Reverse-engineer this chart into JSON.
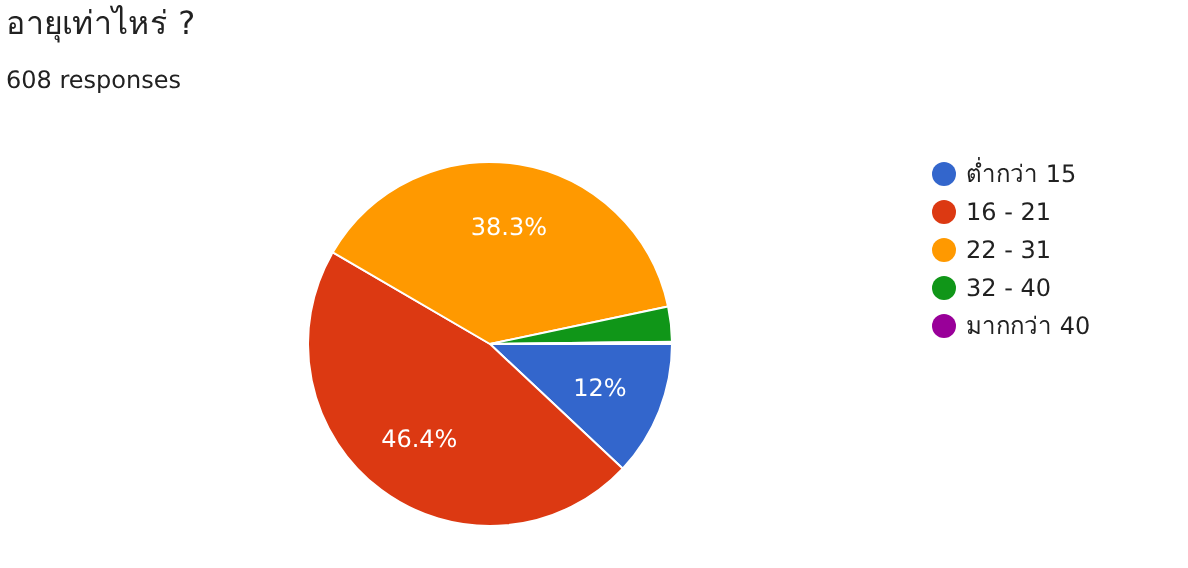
{
  "chart_data": {
    "type": "pie",
    "title": "อายุเท่าไหร่ ?",
    "subtitle": "608 responses",
    "categories": [
      "ต่ำกว่า 15",
      "16 - 21",
      "22 - 31",
      "32 - 40",
      "มากกว่า 40"
    ],
    "values": [
      12,
      46.4,
      38.3,
      3.1,
      0.2
    ],
    "colors": [
      "#3366cc",
      "#dc3912",
      "#ff9900",
      "#109618",
      "#990099"
    ],
    "value_labels": [
      "12%",
      "46.4%",
      "38.3%",
      null,
      null
    ],
    "legend": "right"
  }
}
